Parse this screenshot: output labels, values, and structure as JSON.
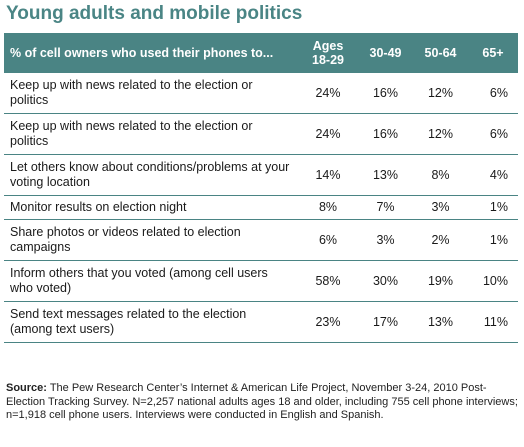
{
  "title": "Young adults and mobile politics",
  "chart_data": {
    "type": "table",
    "title": "Young adults and mobile politics",
    "row_header": "% of cell owners who used their phones to...",
    "columns": [
      "Ages 18-29",
      "30-49",
      "50-64",
      "65+"
    ],
    "rows": [
      {
        "label": "Keep up with news related to the election or politics",
        "values": [
          "24%",
          "16%",
          "12%",
          "6%"
        ]
      },
      {
        "label": "Keep up with news related to the election or politics",
        "values": [
          "24%",
          "16%",
          "12%",
          "6%"
        ]
      },
      {
        "label": "Let others know about conditions/problems at your voting location",
        "values": [
          "14%",
          "13%",
          "8%",
          "4%"
        ]
      },
      {
        "label": "Monitor results on election night",
        "values": [
          "8%",
          "7%",
          "3%",
          "1%"
        ]
      },
      {
        "label": "Share photos or videos related to election campaigns",
        "values": [
          "6%",
          "3%",
          "2%",
          "1%"
        ]
      },
      {
        "label": "Inform others that you voted (among cell users who voted)",
        "values": [
          "58%",
          "30%",
          "19%",
          "10%"
        ]
      },
      {
        "label": "Send text messages related to the election (among text users)",
        "values": [
          "23%",
          "17%",
          "13%",
          "11%"
        ]
      }
    ]
  },
  "source": {
    "label": "Source:",
    "text": " The Pew Research Center’s Internet & American Life Project, November 3-24, 2010 Post-Election Tracking Survey. N=2,257 national adults ages 18 and older, including 755 cell phone interviews; n=1,918 cell phone users. Interviews were conducted in English and Spanish."
  },
  "colors": {
    "title": "#4a8585",
    "header_bg": "#4a8484",
    "rule": "#4a8484"
  }
}
